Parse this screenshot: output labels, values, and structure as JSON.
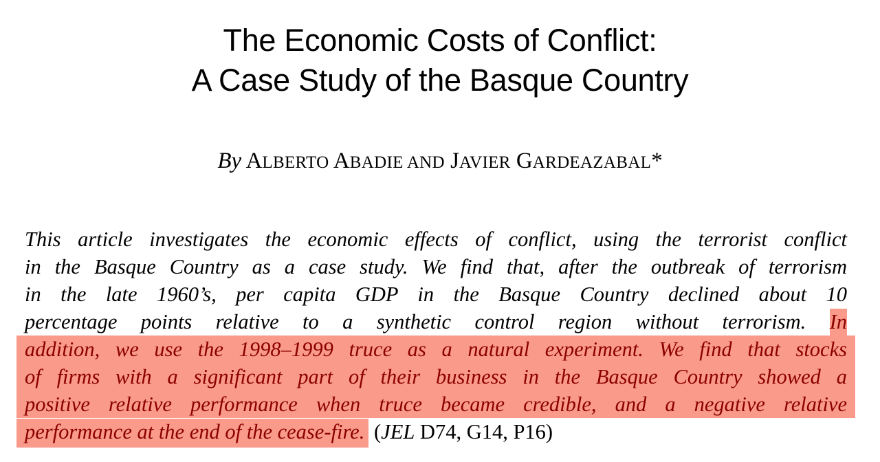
{
  "title": {
    "line1": "The Economic Costs of Conflict:",
    "line2": "A Case Study of the Basque Country"
  },
  "byline": {
    "by": "By",
    "authors_a_first": "A",
    "authors_a_rest": "LBERTO",
    "authors_b_first": "A",
    "authors_b_rest": "BADIE AND",
    "authors_c_first": "J",
    "authors_c_rest": "AVIER",
    "authors_d_first": "G",
    "authors_d_rest": "ARDEAZABAL",
    "footnote_mark": "*"
  },
  "abstract": {
    "line1": "This article investigates the economic effects of conflict, using the terrorist conflict",
    "line2": "in the Basque Country as a case study. We find that, after the outbreak of terrorism",
    "line3": "in the late 1960’s, per capita GDP in the Basque Country declined about 10",
    "line4_plain": "percentage points relative to a synthetic control region without terrorism.",
    "line4_highlight": "In",
    "line5": "addition, we use the 1998–1999 truce as a natural experiment. We find that stocks",
    "line6": "of firms with a significant part of their business in the Basque Country showed a",
    "line7": "positive relative performance when truce became credible, and a negative relative",
    "line8_highlight": "performance at the end of the cease-fire.",
    "jel_open": "(",
    "jel_label": "JEL",
    "jel_codes": "D74, G14, P16)"
  },
  "highlight_color": "#f99a8a",
  "highlight_text_color": "#8b0000"
}
